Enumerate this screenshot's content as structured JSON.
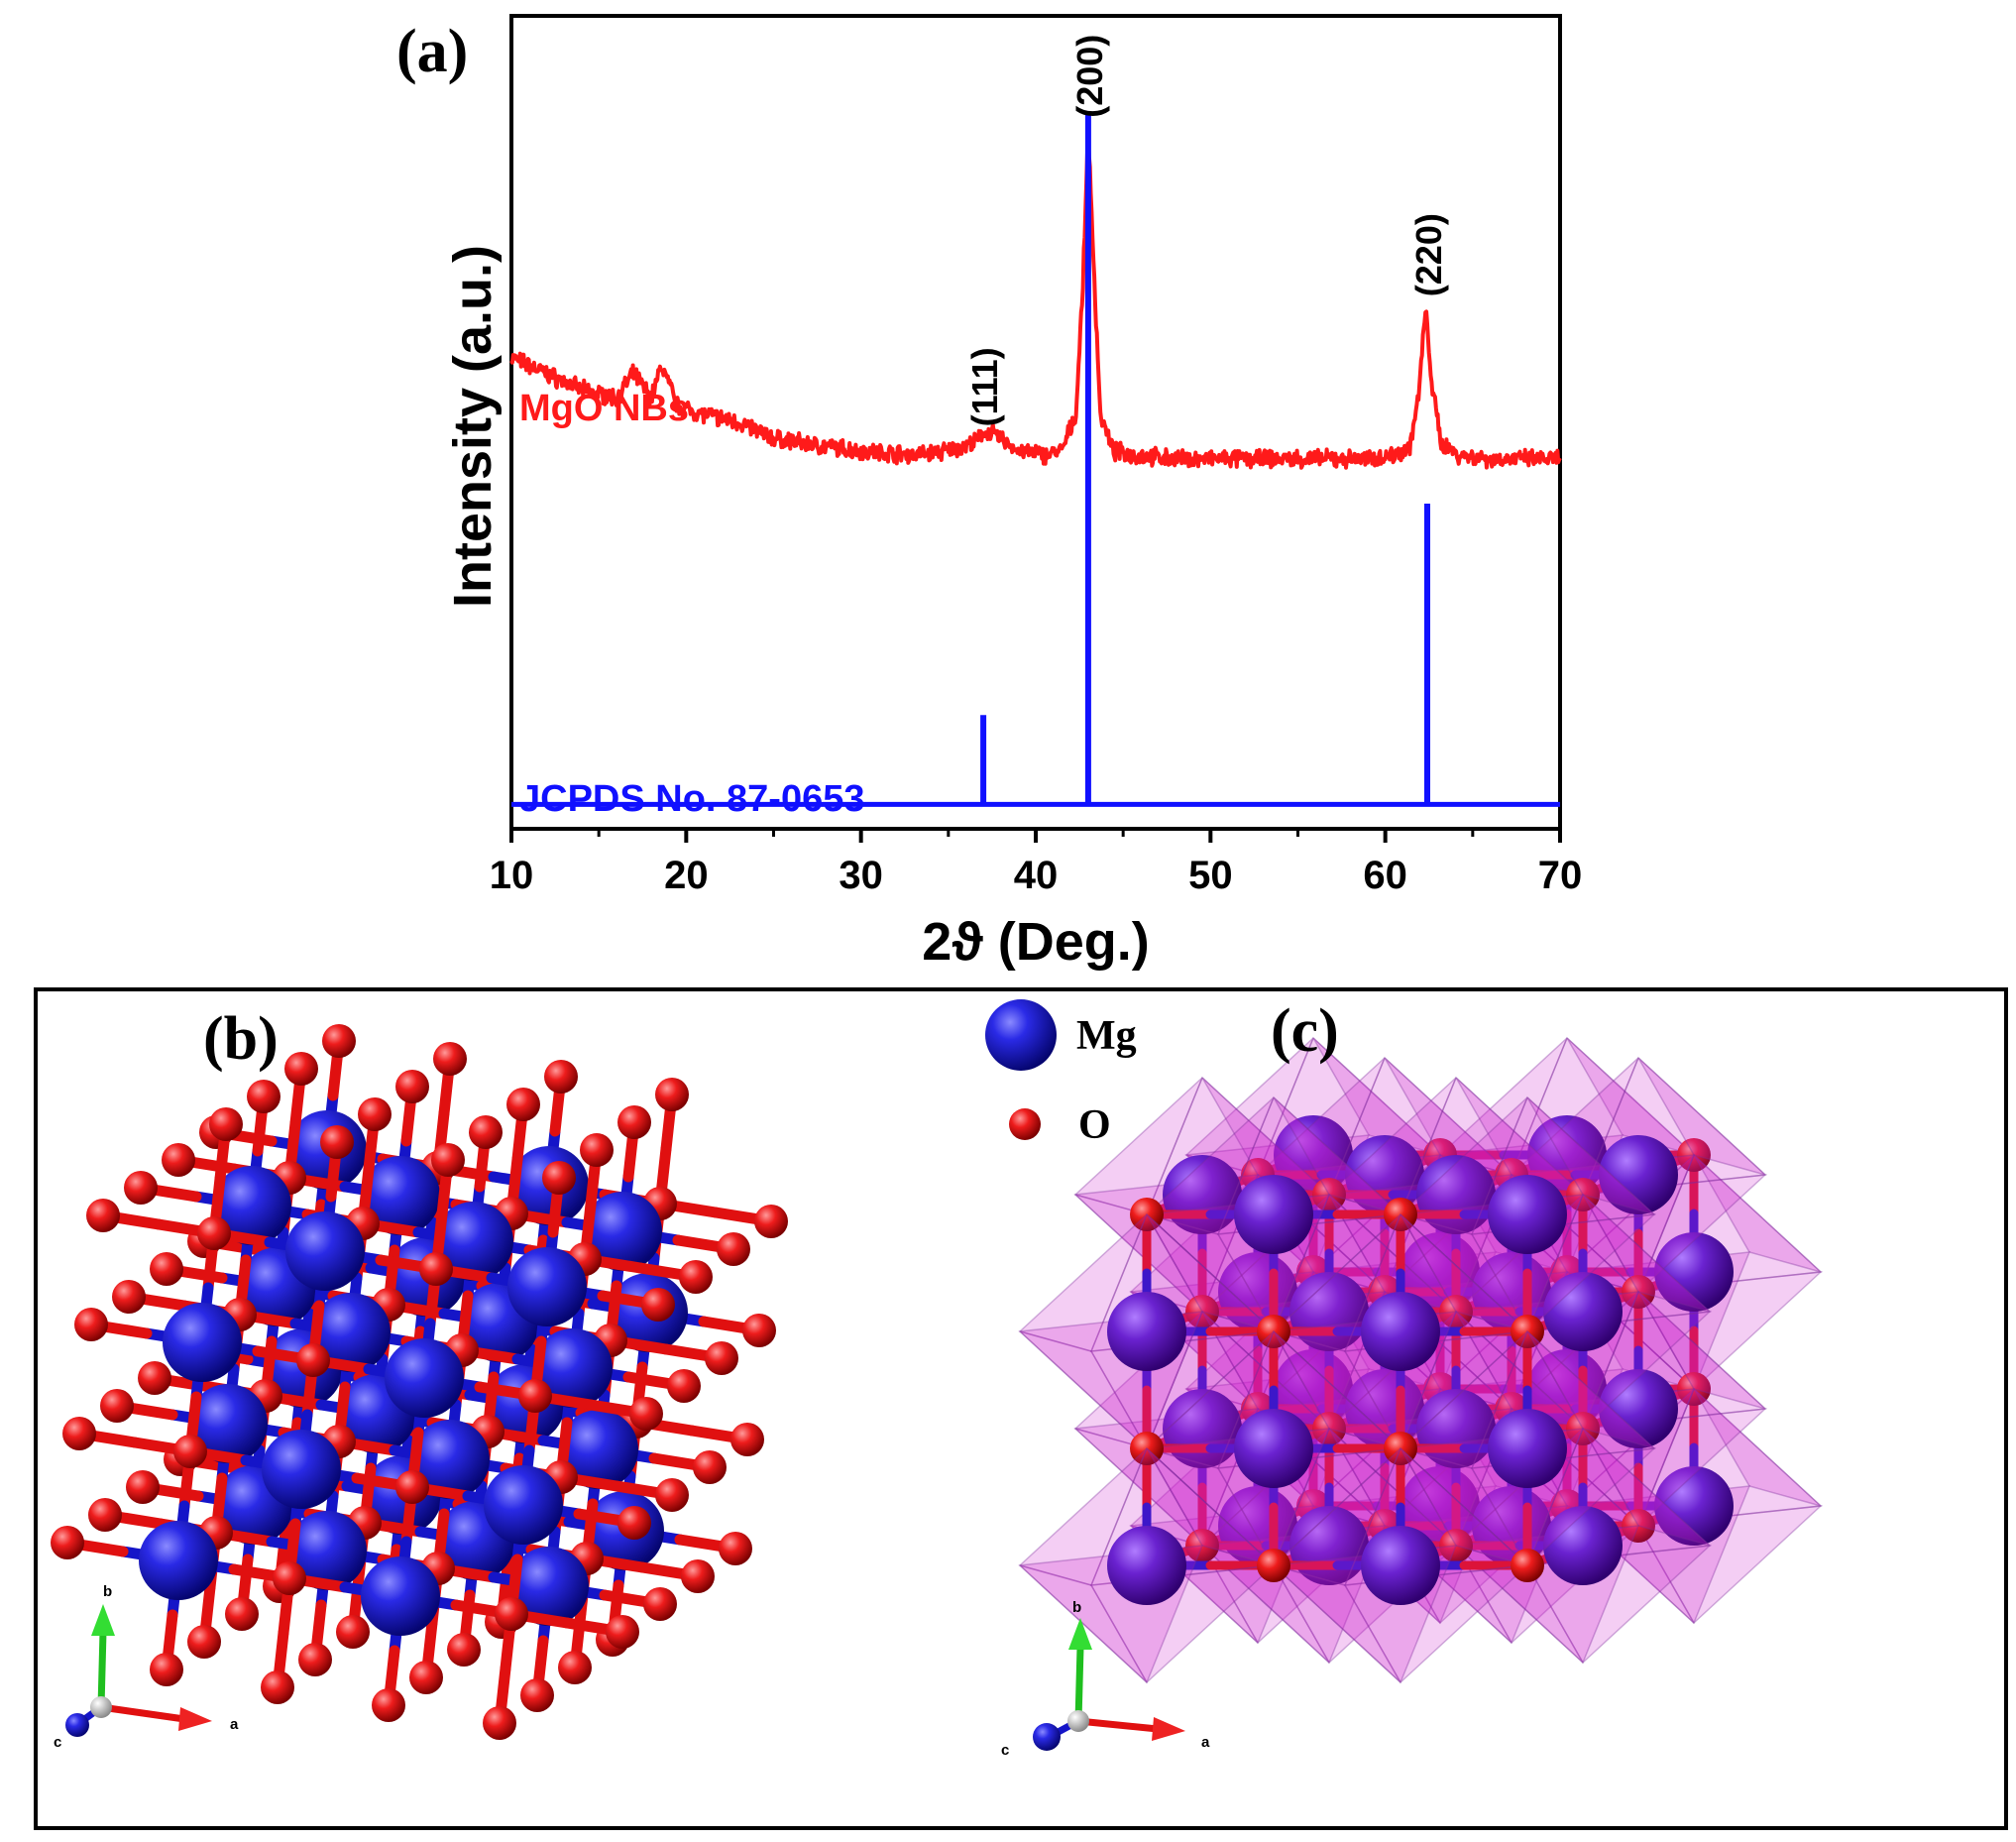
{
  "panels": {
    "a_label": "(a)",
    "b_label": "(b)",
    "c_label": "(c)"
  },
  "colors": {
    "measured": "#ff1a1a",
    "reference": "#1010ff",
    "mg_atom": "#1515c8",
    "o_atom": "#e01010",
    "octahedron": "#cc22cc",
    "octahedron_mg": "#7d2bd6"
  },
  "chart_data": {
    "type": "line",
    "title": "",
    "xlabel": "2ϑ (Deg.)",
    "ylabel": "Intensity (a.u.)",
    "xlim": [
      10,
      70
    ],
    "ylim": [
      0,
      100
    ],
    "xticks": [
      10,
      20,
      30,
      40,
      50,
      60,
      70
    ],
    "grid": false,
    "series": [
      {
        "name": "MgO NBs",
        "kind": "pattern",
        "x": [
          10,
          12,
          14,
          16,
          17,
          18,
          18.6,
          19.5,
          21,
          23,
          25,
          28,
          30,
          33,
          35,
          36.5,
          37.2,
          38,
          39,
          40.5,
          41.5,
          42.3,
          42.7,
          43.0,
          43.3,
          43.7,
          44.4,
          45.5,
          48,
          51,
          54,
          57,
          59,
          60.5,
          61.4,
          61.9,
          62.3,
          62.7,
          63.2,
          64.2,
          66,
          68,
          70
        ],
        "values": [
          58,
          56,
          54,
          53,
          56,
          53,
          57,
          52,
          51,
          50,
          48,
          47,
          46.5,
          46,
          46.5,
          47.5,
          49,
          48,
          46.5,
          46,
          46.5,
          51,
          67,
          86,
          70,
          51,
          46.5,
          46,
          45.5,
          45.5,
          45.5,
          45.5,
          45.5,
          46,
          47,
          53,
          64,
          54,
          47.5,
          46,
          45.5,
          45.5,
          45.5
        ]
      },
      {
        "name": "JCPDS No. 87-0653",
        "kind": "sticks",
        "baseline": 3,
        "x": [
          37.0,
          43.0,
          62.4
        ],
        "values": [
          14,
          88,
          40
        ]
      }
    ],
    "annotations": [
      {
        "text": "(111)",
        "x": 37.0,
        "y": 48
      },
      {
        "text": "(200)",
        "x": 43.0,
        "y": 86
      },
      {
        "text": "(220)",
        "x": 62.4,
        "y": 64
      }
    ]
  },
  "legend": {
    "mg": "Mg",
    "o": "O"
  },
  "axes_glyph": {
    "a": "a",
    "b": "b",
    "c": "c"
  }
}
